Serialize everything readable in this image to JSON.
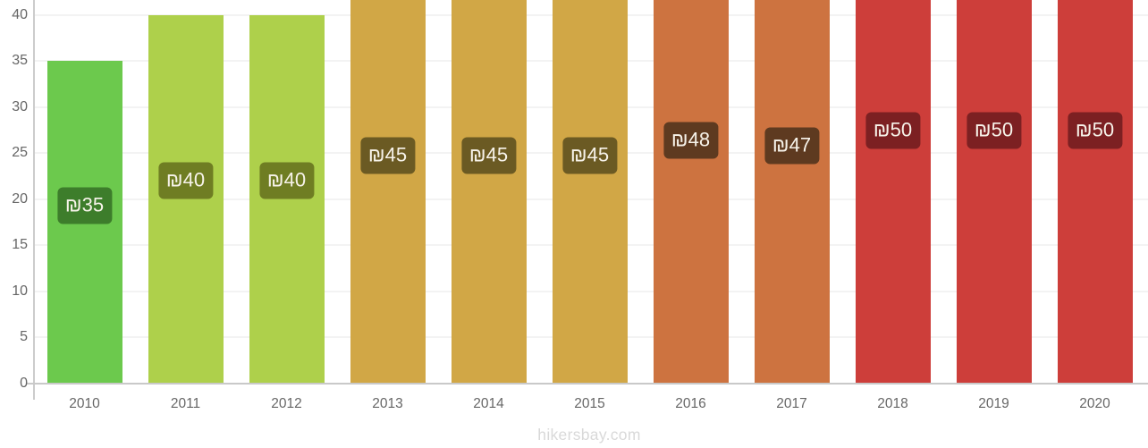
{
  "chart_data": {
    "type": "bar",
    "title": "",
    "xlabel": "",
    "ylabel": "",
    "categories": [
      "2010",
      "2011",
      "2012",
      "2013",
      "2014",
      "2015",
      "2016",
      "2017",
      "2018",
      "2019",
      "2020"
    ],
    "values": [
      35,
      40,
      40,
      45,
      45,
      45,
      48,
      47,
      50,
      50,
      50
    ],
    "value_labels": [
      "₪35",
      "₪40",
      "₪40",
      "₪45",
      "₪45",
      "₪45",
      "₪48",
      "₪47",
      "₪50",
      "₪50",
      "₪50"
    ],
    "currency_symbol": "₪",
    "y_ticks": [
      0,
      5,
      10,
      15,
      20,
      25,
      30,
      35,
      40
    ],
    "y_axis_visible_range": [
      0,
      40
    ],
    "grid": true,
    "legend_position": "none",
    "bar_colors": [
      "#6cc94d",
      "#aed04b",
      "#aed04b",
      "#d1a746",
      "#d1a746",
      "#d1a746",
      "#cd7340",
      "#cd7340",
      "#cd3e3a",
      "#cd3e3a",
      "#cd3e3a"
    ],
    "label_bg_colors": [
      "#3d7d2b",
      "#6f7d23",
      "#6f7d23",
      "#6b5a23",
      "#6b5a23",
      "#6b5a23",
      "#5e3a20",
      "#5e3a20",
      "#7c2022",
      "#7c2022",
      "#7c2022"
    ],
    "label_text_color": "#f7f3ea",
    "axis_color": "#c9c9c9",
    "grid_color": "#f3f3f3",
    "tick_label_color": "#666666",
    "watermark": "hikersbay.com",
    "watermark_color": "#d9d9d9"
  }
}
